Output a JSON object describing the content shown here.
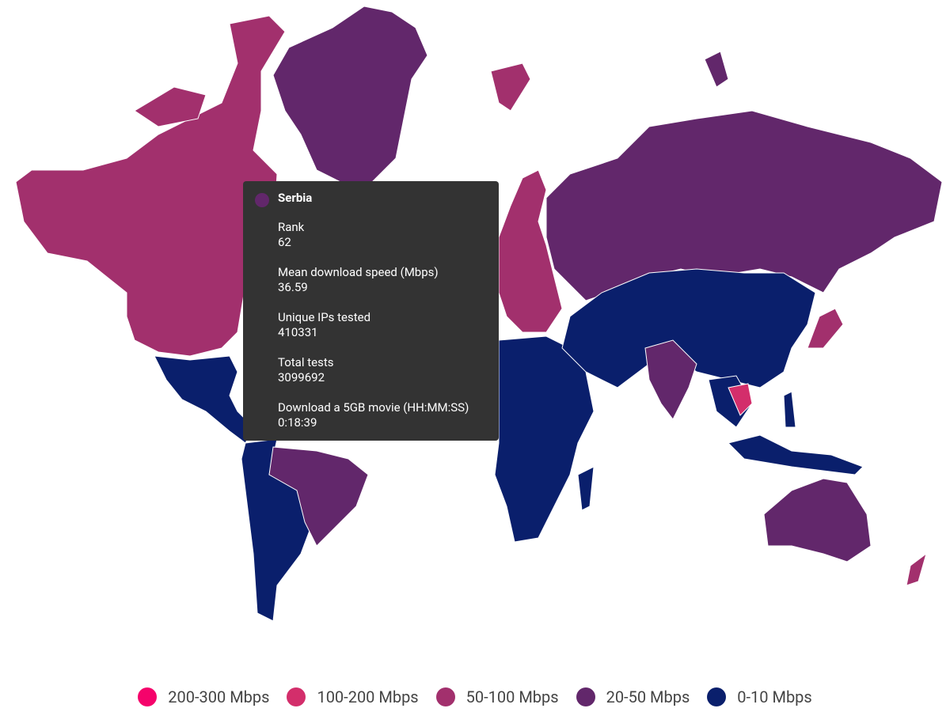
{
  "tooltip": {
    "country": "Serbia",
    "color": "#62276b",
    "fields": [
      {
        "label": "Rank",
        "value": 62
      },
      {
        "label": "Mean download speed (Mbps)",
        "value": 36.59
      },
      {
        "label": "Unique IPs tested",
        "value": 410331
      },
      {
        "label": "Total tests",
        "value": 3099692
      },
      {
        "label": "Download a 5GB movie (HH:MM:SS)",
        "value": "0:18:39"
      }
    ]
  },
  "legend": [
    {
      "label": "200-300 Mbps",
      "color": "#f5036b"
    },
    {
      "label": "100-200 Mbps",
      "color": "#d32e6b"
    },
    {
      "label": "50-100 Mbps",
      "color": "#a2306d"
    },
    {
      "label": "20-50 Mbps",
      "color": "#62276b"
    },
    {
      "label": "0-10 Mbps",
      "color": "#0a1f6c"
    }
  ]
}
